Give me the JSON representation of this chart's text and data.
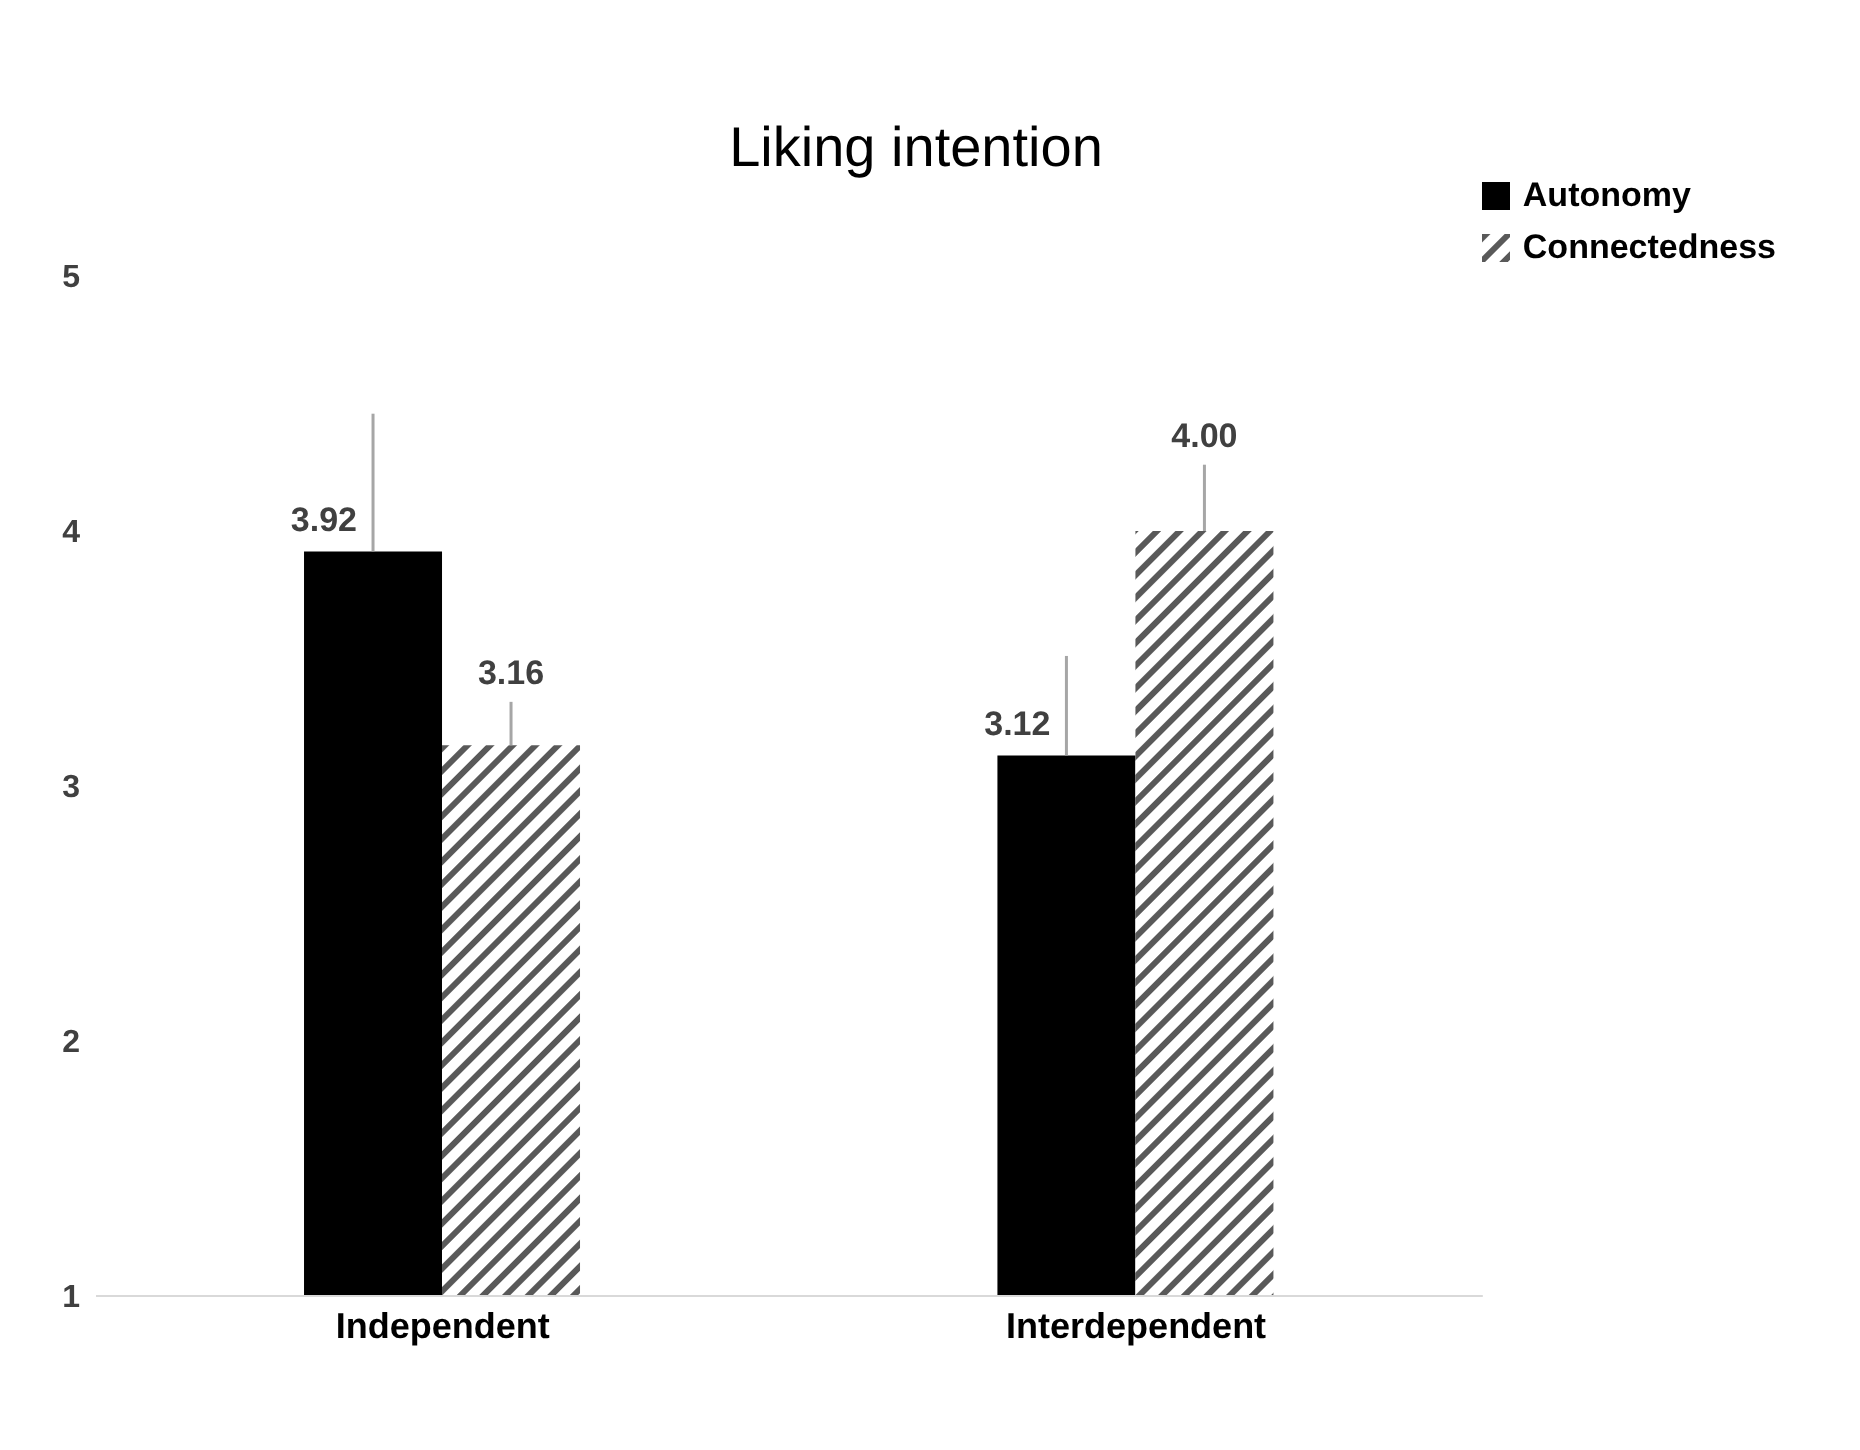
{
  "chart_data": {
    "type": "bar",
    "title": "Liking intention",
    "categories": [
      "Independent",
      "Interdependent"
    ],
    "series": [
      {
        "name": "Autonomy",
        "color": "#000000",
        "values": [
          3.92,
          3.12
        ],
        "errors": [
          [
            3.92,
            4.46
          ],
          [
            3.12,
            3.51
          ]
        ],
        "value_labels": [
          "3.92",
          "3.12"
        ]
      },
      {
        "name": "Connectedness",
        "color": "#595959",
        "values": [
          3.16,
          4.0
        ],
        "errors": [
          [
            3.16,
            3.33
          ],
          [
            4.0,
            4.26
          ]
        ],
        "value_labels": [
          "3.16",
          "4.00"
        ]
      }
    ],
    "ylim": [
      1,
      5
    ],
    "yticks": [
      1,
      2,
      3,
      4,
      5
    ],
    "legend": "top right"
  }
}
